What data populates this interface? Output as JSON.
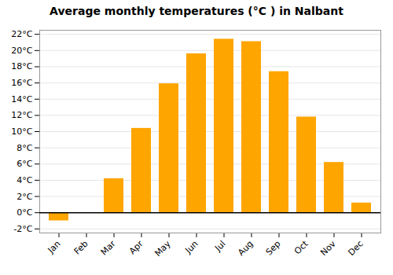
{
  "chart_data": {
    "type": "bar",
    "title": "Average monthly temperatures (°C ) in Nalbant",
    "categories": [
      "Jan",
      "Feb",
      "Mar",
      "Apr",
      "May",
      "Jun",
      "Jul",
      "Aug",
      "Sep",
      "Oct",
      "Nov",
      "Dec"
    ],
    "values": [
      -1.0,
      0.0,
      4.2,
      10.4,
      15.9,
      19.6,
      21.4,
      21.1,
      17.4,
      11.8,
      6.2,
      1.2
    ],
    "color": "#FFA500",
    "ylim": [
      -2.5,
      22.5
    ],
    "yticks": [
      {
        "value": -2,
        "label": "-2°C"
      },
      {
        "value": 0,
        "label": "0°C"
      },
      {
        "value": 2,
        "label": "2°C"
      },
      {
        "value": 4,
        "label": "4°C"
      },
      {
        "value": 6,
        "label": "6°C"
      },
      {
        "value": 8,
        "label": "8°C"
      },
      {
        "value": 10,
        "label": "10°C"
      },
      {
        "value": 12,
        "label": "12°C"
      },
      {
        "value": 14,
        "label": "14°C"
      },
      {
        "value": 16,
        "label": "16°C"
      },
      {
        "value": 18,
        "label": "18°C"
      },
      {
        "value": 20,
        "label": "20°C"
      },
      {
        "value": 22,
        "label": "22°C"
      }
    ],
    "grid": true
  }
}
